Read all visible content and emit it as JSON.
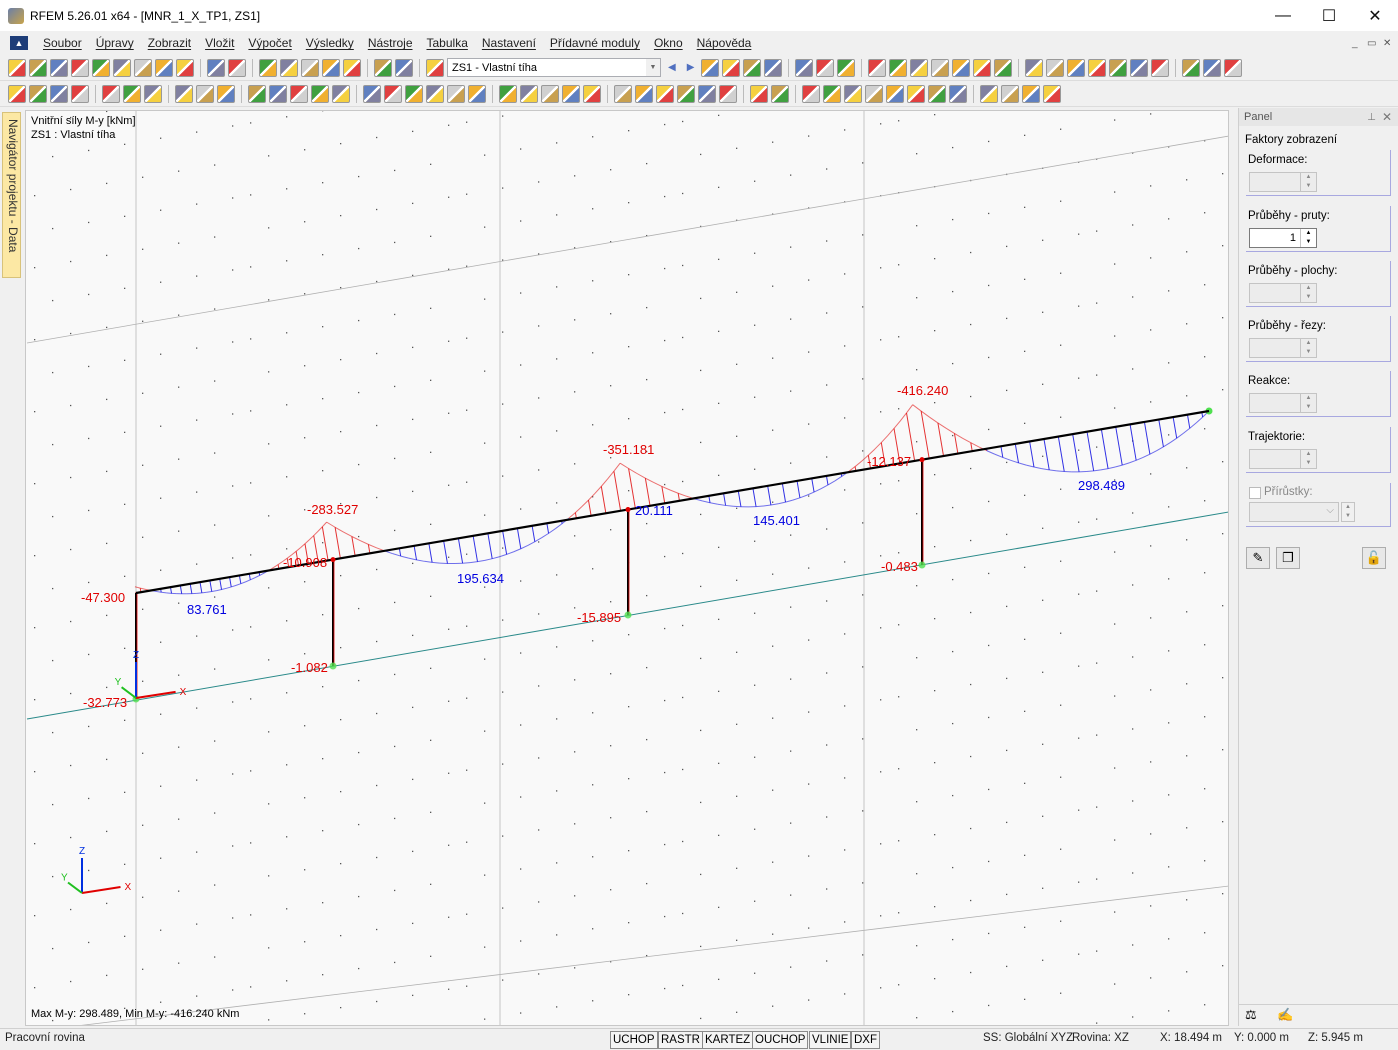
{
  "window": {
    "title": "RFEM 5.26.01 x64 - [MNR_1_X_TP1, ZS1]",
    "minimize": "—",
    "maximize": "☐",
    "close": "✕"
  },
  "menu": [
    "Soubor",
    "Úpravy",
    "Zobrazit",
    "Vložit",
    "Výpočet",
    "Výsledky",
    "Nástroje",
    "Tabulka",
    "Nastavení",
    "Přídavné moduly",
    "Okno",
    "Nápověda"
  ],
  "toolbar": {
    "load_case": "ZS1 - Vlastní tíha"
  },
  "navigator_tab": "Navigátor projektu - Data",
  "viewport": {
    "info_line1": "Vnitřní síly M-y [kNm]",
    "info_line2": "ZS1 : Vlastní tíha",
    "summary": "Max M-y: 298.489, Min M-y: -416.240 kNm",
    "axes": {
      "x": "X",
      "y": "Y",
      "z": "Z"
    },
    "colors": {
      "negative": "#e00000",
      "positive": "#0000e0",
      "member": "#000000",
      "ground": "#2a8a8a"
    },
    "beam_spans": [
      {
        "start": -47.3,
        "end": -283.527,
        "max": 83.761
      },
      {
        "start": -283.527,
        "end": -351.181,
        "max": 195.634
      },
      {
        "start": -351.181,
        "end": -416.24,
        "max": 145.401
      },
      {
        "start": -416.24,
        "end": 0,
        "max": 298.489
      }
    ],
    "labels": {
      "top_left": "-47.300",
      "base_left": "-32.773",
      "span1": "83.761",
      "support1_peak": "-283.527",
      "col1_top": "-10.908",
      "col1_base": "-1.082",
      "span2": "195.634",
      "support2_peak": "-351.181",
      "col2_top": "20.111",
      "col2_base": "-15.895",
      "span3": "145.401",
      "support3_peak": "-416.240",
      "col3_top": "-12.137",
      "col3_base": "-0.483",
      "span4": "298.489"
    }
  },
  "panel": {
    "title": "Panel",
    "pin": "📌",
    "close": "✕",
    "section": "Faktory zobrazení",
    "groups": [
      {
        "label": "Deformace:",
        "value": "",
        "enabled": false
      },
      {
        "label": "Průběhy - pruty:",
        "value": "1",
        "enabled": true
      },
      {
        "label": "Průběhy - plochy:",
        "value": "",
        "enabled": false
      },
      {
        "label": "Průběhy - řezy:",
        "value": "",
        "enabled": false
      },
      {
        "label": "Reakce:",
        "value": "",
        "enabled": false
      },
      {
        "label": "Trajektorie:",
        "value": "",
        "enabled": false
      }
    ],
    "increments_label": "Přírůstky:",
    "increments_checked": false
  },
  "statusbar": {
    "left": "Pracovní rovina",
    "toggles": [
      "UCHOP",
      "RASTR",
      "KARTEZ",
      "OUCHOP",
      "VLINIE",
      "DXF"
    ],
    "cs": "SS: Globální XYZ",
    "plane": "Rovina: XZ",
    "x": "X:  18.494 m",
    "y": "Y:  0.000 m",
    "z": "Z:  5.945 m"
  }
}
